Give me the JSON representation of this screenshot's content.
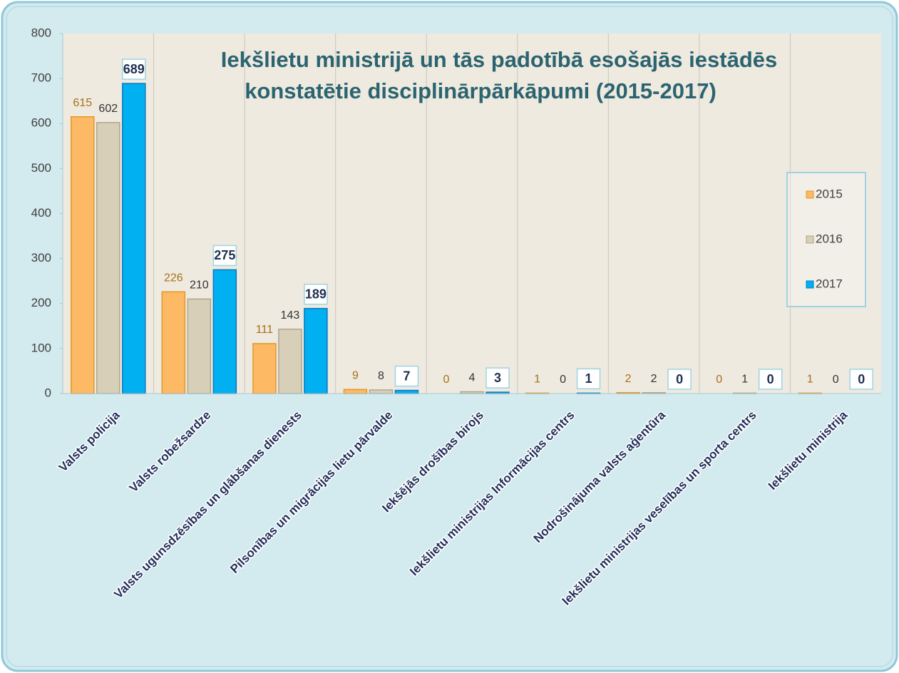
{
  "chart_data": {
    "type": "bar",
    "title": [
      "Iekšlietu ministrijā un tās padotībā esošajās iestādēs",
      "konstatētie disciplinārpārkāpumi (2015-2017)"
    ],
    "categories": [
      "Valsts policija",
      "Valsts robežsardze",
      "Valsts ugunsdzēsības un glābšanas dienests",
      "Pilsonības un migrācijas lietu pārvalde",
      "Iekšējās drošības birojs",
      "Iekšlietu ministrijas Informācijas centrs",
      "Nodrošinājuma valsts aģentūra",
      "Iekšlietu ministrijas veselības un sporta centrs",
      "Iekšlietu ministrija"
    ],
    "series": [
      {
        "name": "2015",
        "color": "#fdb963",
        "values": [
          615,
          226,
          111,
          9,
          0,
          1,
          2,
          0,
          1
        ]
      },
      {
        "name": "2016",
        "color": "#d8cfb8",
        "values": [
          602,
          210,
          143,
          8,
          4,
          0,
          2,
          1,
          0
        ]
      },
      {
        "name": "2017",
        "color": "#00b0f0",
        "values": [
          689,
          275,
          189,
          7,
          3,
          1,
          0,
          0,
          0
        ]
      }
    ],
    "ylim": [
      0,
      800
    ],
    "yticks": [
      0,
      100,
      200,
      300,
      400,
      500,
      600,
      700,
      800
    ],
    "legend": "right"
  }
}
